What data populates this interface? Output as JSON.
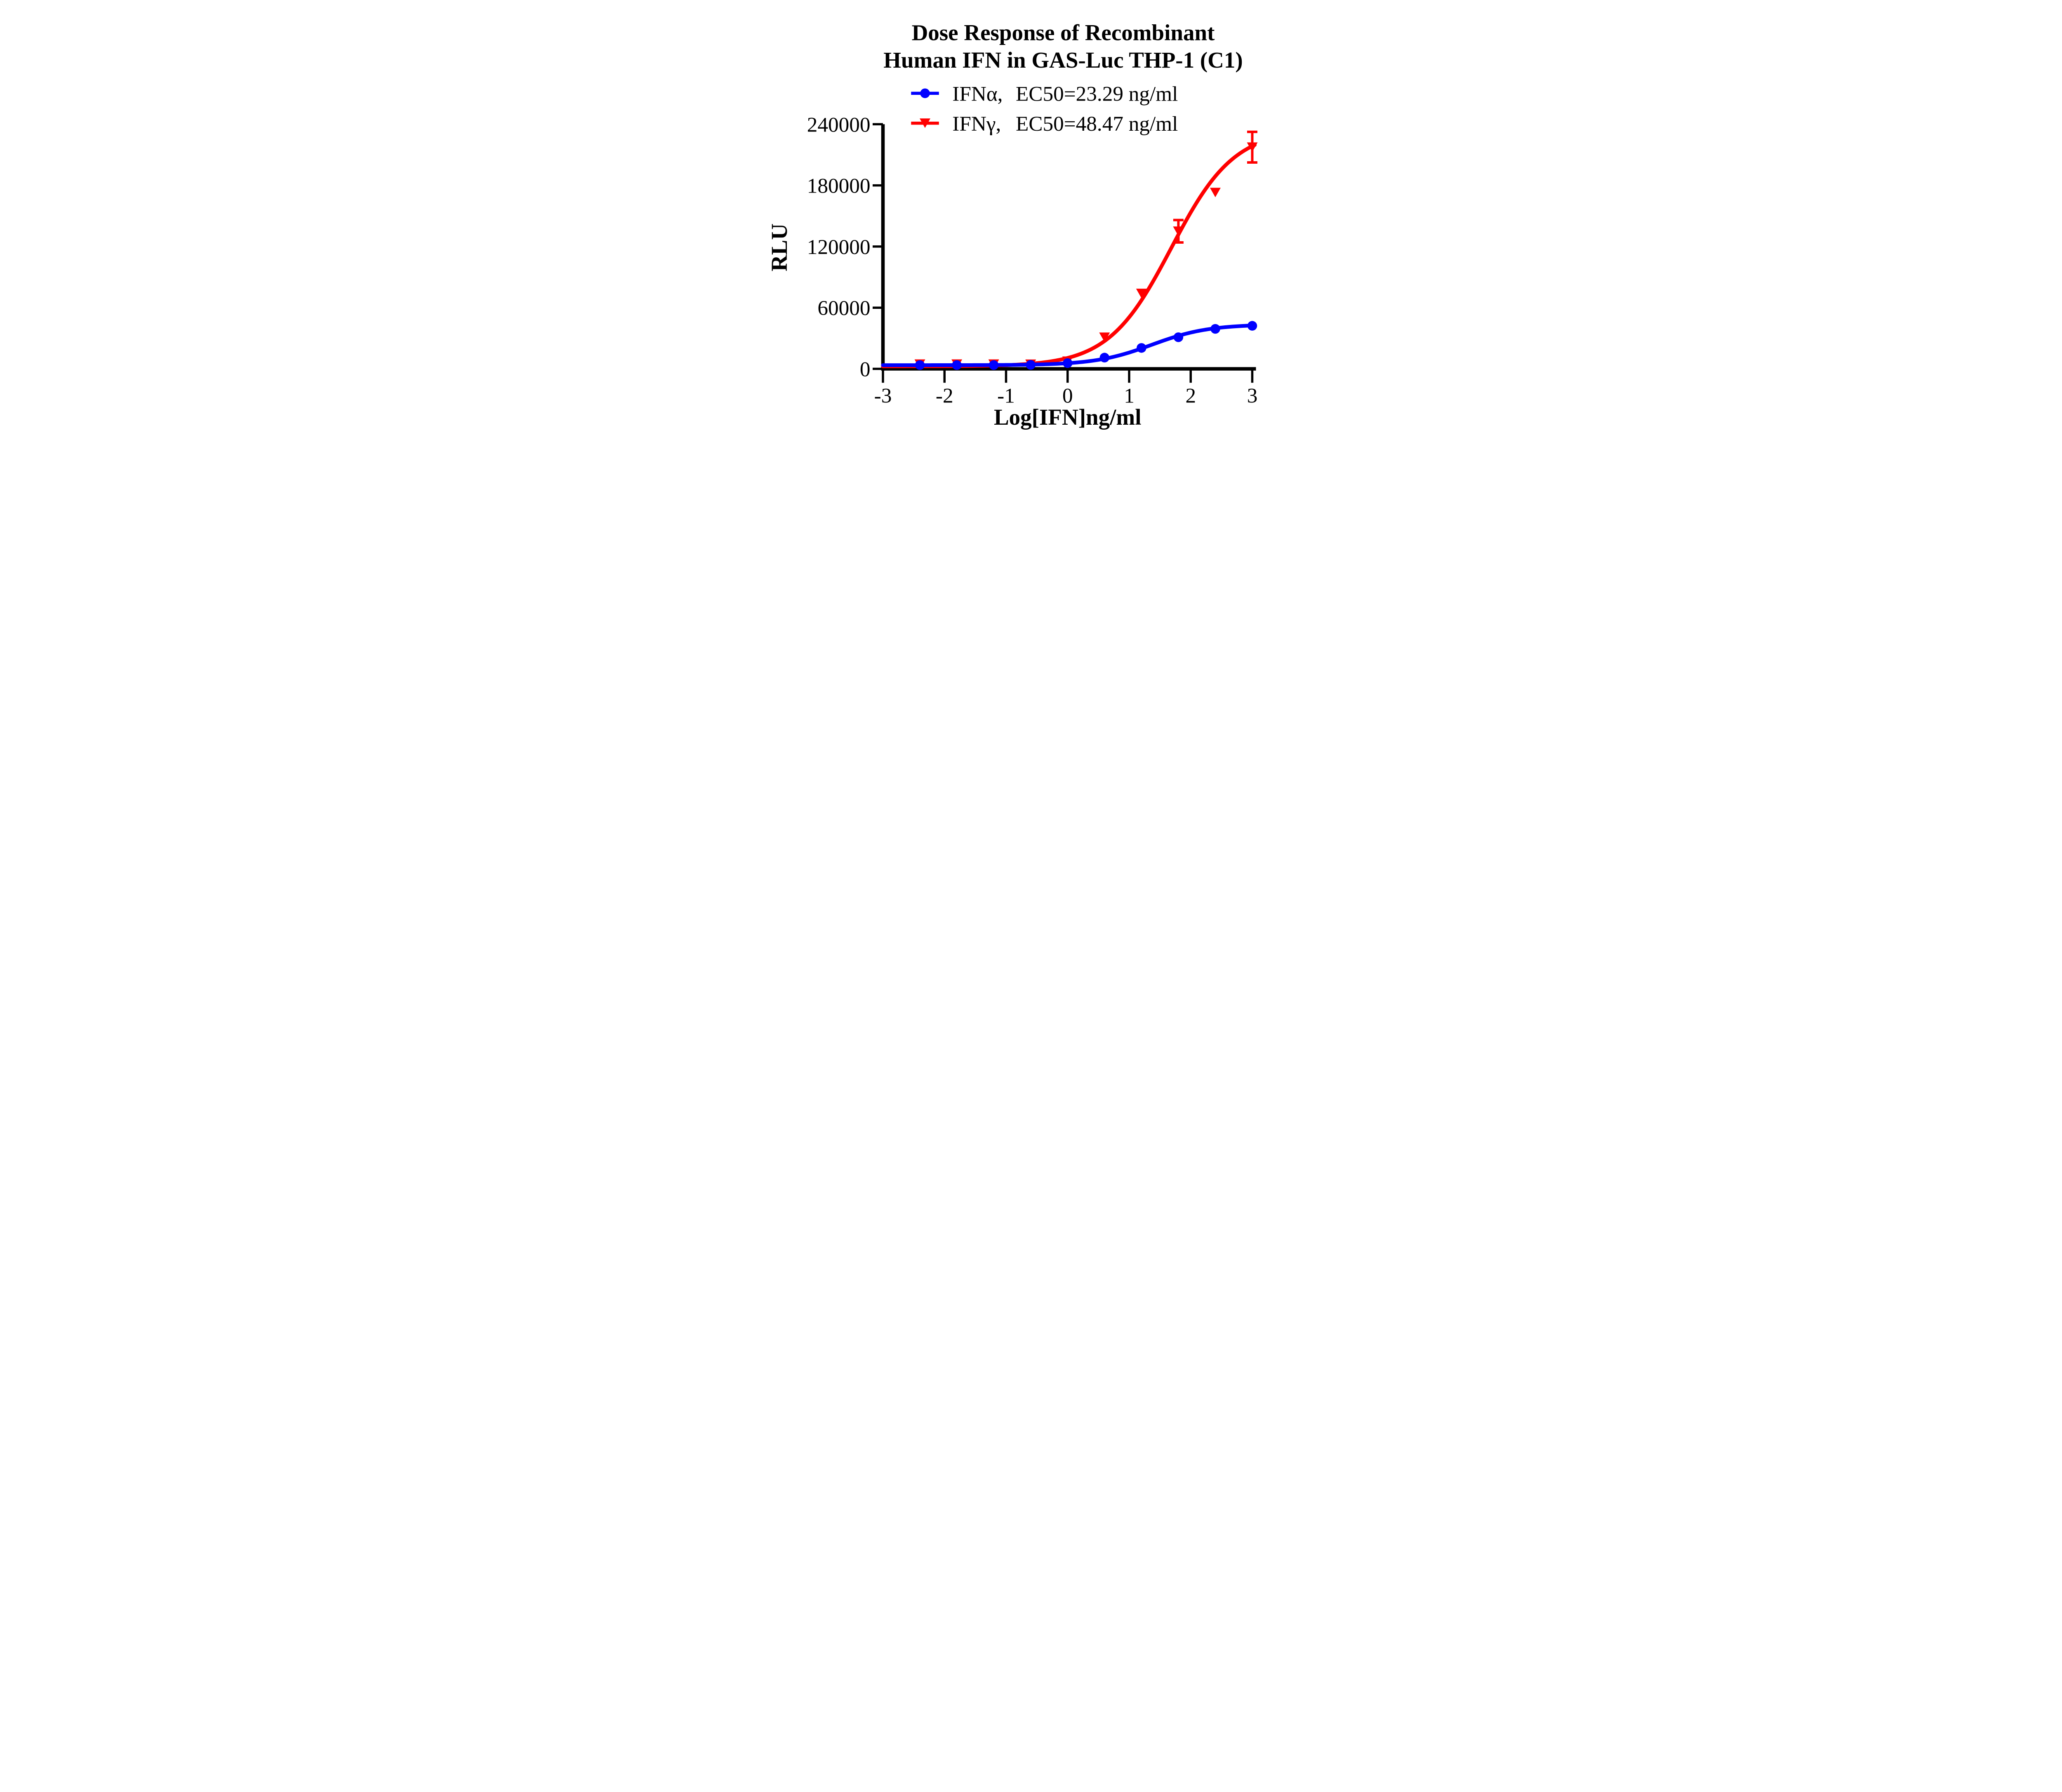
{
  "figure": {
    "title_line1": "Dose Response of Recombinant",
    "title_line2": "Human IFN in GAS-Luc THP-1 (C1)",
    "y_axis_title": "RLU",
    "x_axis_title": "Log[IFN]ng/ml",
    "background_color": "#FFFFFF",
    "axis_color": "#000000",
    "text_color": "#000000"
  },
  "legend": {
    "items": [
      {
        "label": "IFNα,",
        "ec50": "EC50=23.29 ng/ml",
        "color": "#0000FF",
        "marker": "circle"
      },
      {
        "label": "IFNγ,",
        "ec50": "EC50=48.47 ng/ml",
        "color": "#FF0000",
        "marker": "triangle-down"
      }
    ]
  },
  "chart_data": {
    "type": "line",
    "title": "Dose Response of Recombinant Human IFN in GAS-Luc THP-1 (C1)",
    "xlabel": "Log[IFN]ng/ml",
    "ylabel": "RLU",
    "xlim": [
      -3,
      3
    ],
    "ylim": [
      0,
      240000
    ],
    "grid": false,
    "legend_position": "top",
    "x_ticks": [
      -3,
      -2,
      -1,
      0,
      1,
      2,
      3
    ],
    "x_tick_labels": [
      "-3",
      "-2",
      "-1",
      "0",
      "1",
      "2",
      "3"
    ],
    "y_ticks": [
      0,
      60000,
      120000,
      180000,
      240000
    ],
    "y_tick_labels": [
      "0",
      "60000",
      "120000",
      "180000",
      "240000"
    ],
    "x": [
      -2.4,
      -1.8,
      -1.2,
      -0.6,
      0,
      0.6,
      1.2,
      1.8,
      2.4,
      3
    ],
    "series": [
      {
        "name": "IFNα",
        "ec50_label": "EC50=23.29 ng/ml",
        "ec50_ng_ml": 23.29,
        "color": "#0000FF",
        "marker": "circle",
        "values": [
          3700,
          3700,
          3700,
          3900,
          5600,
          11000,
          20500,
          31000,
          39200,
          42200
        ],
        "err_plus": [
          0,
          0,
          0,
          0,
          0,
          0,
          0,
          0,
          0,
          0
        ],
        "err_minus": [
          0,
          0,
          0,
          0,
          0,
          0,
          0,
          0,
          0,
          0
        ],
        "fit_4pl": {
          "bottom": 3600,
          "top": 43600,
          "log_ec50": 1.3672,
          "hill": 0.95
        }
      },
      {
        "name": "IFNγ",
        "ec50_label": "EC50=48.47 ng/ml",
        "ec50_ng_ml": 48.47,
        "color": "#FF0000",
        "marker": "triangle-down",
        "values": [
          4600,
          4600,
          4600,
          4500,
          7500,
          31000,
          74000,
          135000,
          173000,
          217500
        ],
        "err_plus": [
          0,
          0,
          0,
          0,
          0,
          0,
          0,
          11000,
          0,
          15000
        ],
        "err_minus": [
          0,
          0,
          0,
          0,
          0,
          0,
          0,
          11000,
          0,
          15000
        ],
        "fit_4pl": {
          "bottom": 2400,
          "top": 235000,
          "log_ec50": 1.6855,
          "hill": 0.85
        }
      }
    ]
  }
}
